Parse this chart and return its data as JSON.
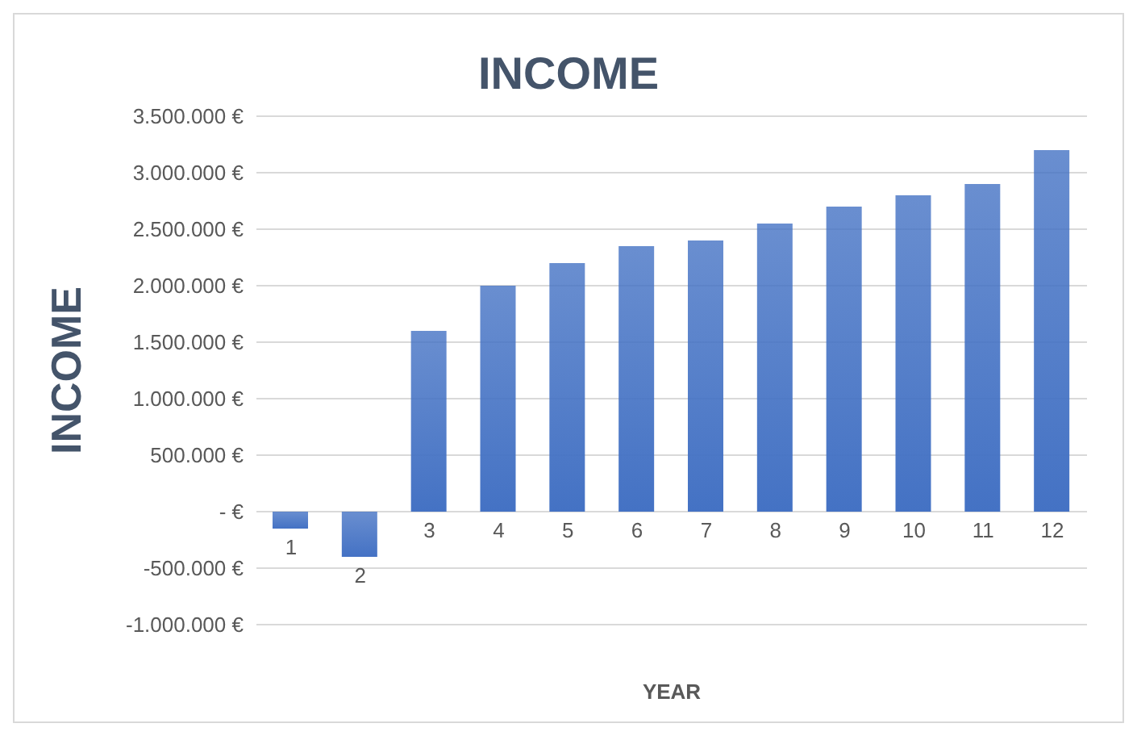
{
  "chart_data": {
    "type": "bar",
    "title": "INCOME",
    "xlabel": "YEAR",
    "ylabel": "INCOME",
    "categories": [
      "1",
      "2",
      "3",
      "4",
      "5",
      "6",
      "7",
      "8",
      "9",
      "10",
      "11",
      "12"
    ],
    "values": [
      -150000,
      -400000,
      1600000,
      2000000,
      2200000,
      2350000,
      2400000,
      2550000,
      2700000,
      2800000,
      2900000,
      3200000
    ],
    "color": "#4472c4",
    "ylim": [
      -1000000,
      3500000
    ],
    "yticks": [
      {
        "value": -1000000,
        "label": "-1.000.000 €"
      },
      {
        "value": -500000,
        "label": "-500.000 €"
      },
      {
        "value": 0,
        "label": "-  €"
      },
      {
        "value": 500000,
        "label": "500.000 €"
      },
      {
        "value": 1000000,
        "label": "1.000.000 €"
      },
      {
        "value": 1500000,
        "label": "1.500.000 €"
      },
      {
        "value": 2000000,
        "label": "2.000.000 €"
      },
      {
        "value": 2500000,
        "label": "2.500.000 €"
      },
      {
        "value": 3000000,
        "label": "3.000.000 €"
      },
      {
        "value": 3500000,
        "label": "3.500.000 €"
      }
    ],
    "grid": "y"
  }
}
